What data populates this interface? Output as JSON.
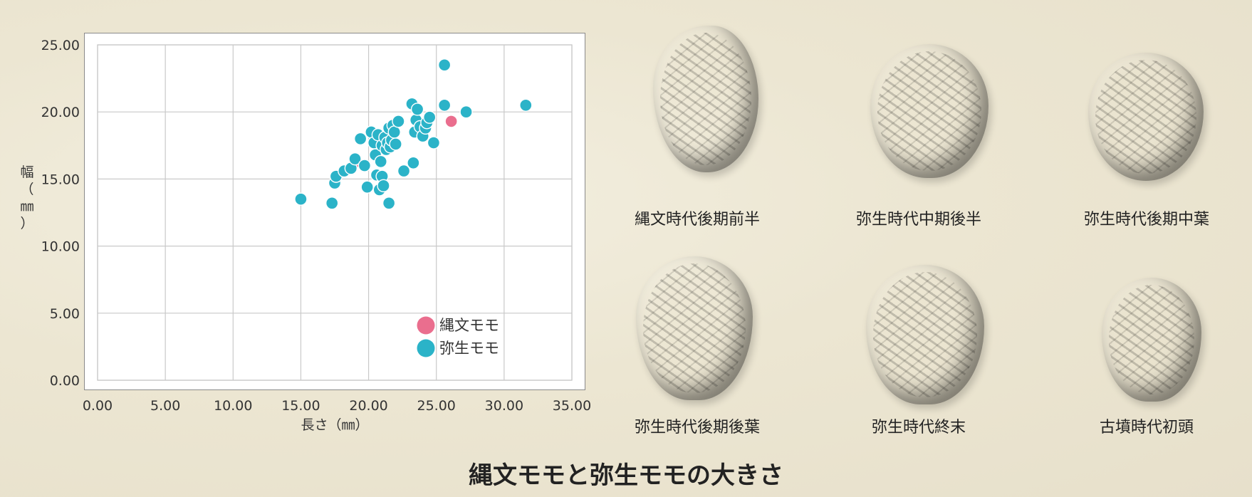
{
  "chart_data": {
    "type": "scatter",
    "title": "",
    "xlabel": "長さ（㎜）",
    "ylabel_chars": [
      "幅",
      "（",
      "㎜",
      "）"
    ],
    "xlim": [
      0,
      35
    ],
    "ylim": [
      0,
      25
    ],
    "x_ticks": [
      "0.00",
      "5.00",
      "10.00",
      "15.00",
      "20.00",
      "25.00",
      "30.00",
      "35.00"
    ],
    "y_ticks": [
      "0.00",
      "5.00",
      "10.00",
      "15.00",
      "20.00",
      "25.00"
    ],
    "grid": true,
    "legend_position": "bottom-right",
    "series": [
      {
        "name": "縄文モモ",
        "color": "#ea6e8e",
        "points": [
          [
            19.1,
            16.3
          ],
          [
            26.1,
            19.3
          ]
        ]
      },
      {
        "name": "弥生モモ",
        "color": "#2bb3c8",
        "points": [
          [
            15.0,
            13.5
          ],
          [
            17.3,
            13.2
          ],
          [
            21.5,
            13.2
          ],
          [
            17.5,
            14.7
          ],
          [
            17.6,
            15.2
          ],
          [
            18.2,
            15.6
          ],
          [
            18.7,
            15.8
          ],
          [
            19.0,
            16.5
          ],
          [
            19.4,
            18.0
          ],
          [
            19.7,
            16.0
          ],
          [
            19.9,
            14.4
          ],
          [
            20.2,
            18.5
          ],
          [
            20.4,
            17.7
          ],
          [
            20.5,
            16.8
          ],
          [
            20.6,
            15.3
          ],
          [
            20.7,
            18.3
          ],
          [
            20.8,
            14.2
          ],
          [
            20.9,
            16.3
          ],
          [
            21.0,
            17.5
          ],
          [
            21.0,
            15.2
          ],
          [
            21.1,
            14.5
          ],
          [
            21.2,
            18.1
          ],
          [
            21.3,
            17.2
          ],
          [
            21.4,
            17.7
          ],
          [
            21.5,
            18.8
          ],
          [
            21.6,
            17.4
          ],
          [
            21.7,
            17.9
          ],
          [
            21.8,
            19.0
          ],
          [
            21.9,
            18.5
          ],
          [
            22.0,
            17.6
          ],
          [
            22.2,
            19.3
          ],
          [
            22.6,
            15.6
          ],
          [
            23.2,
            20.6
          ],
          [
            23.3,
            16.2
          ],
          [
            23.4,
            18.5
          ],
          [
            23.5,
            19.4
          ],
          [
            23.6,
            20.2
          ],
          [
            23.8,
            18.9
          ],
          [
            24.0,
            18.2
          ],
          [
            24.2,
            18.8
          ],
          [
            24.3,
            19.2
          ],
          [
            24.5,
            19.6
          ],
          [
            24.8,
            17.7
          ],
          [
            25.6,
            23.5
          ],
          [
            25.6,
            20.5
          ],
          [
            27.2,
            20.0
          ],
          [
            31.6,
            20.5
          ]
        ]
      }
    ]
  },
  "gallery": {
    "items": [
      {
        "caption": "縄文時代後期前半",
        "color": "#5f5a49"
      },
      {
        "caption": "弥生時代中期後半",
        "color": "#a68f86"
      },
      {
        "caption": "弥生時代後期中葉",
        "color": "#4f4b47"
      },
      {
        "caption": "弥生時代後期後葉",
        "color": "#8f7152"
      },
      {
        "caption": "弥生時代終末",
        "color": "#735f4d"
      },
      {
        "caption": "古墳時代初頭",
        "color": "#585150"
      }
    ]
  },
  "main_title": "縄文モモと弥生モモの大きさ"
}
